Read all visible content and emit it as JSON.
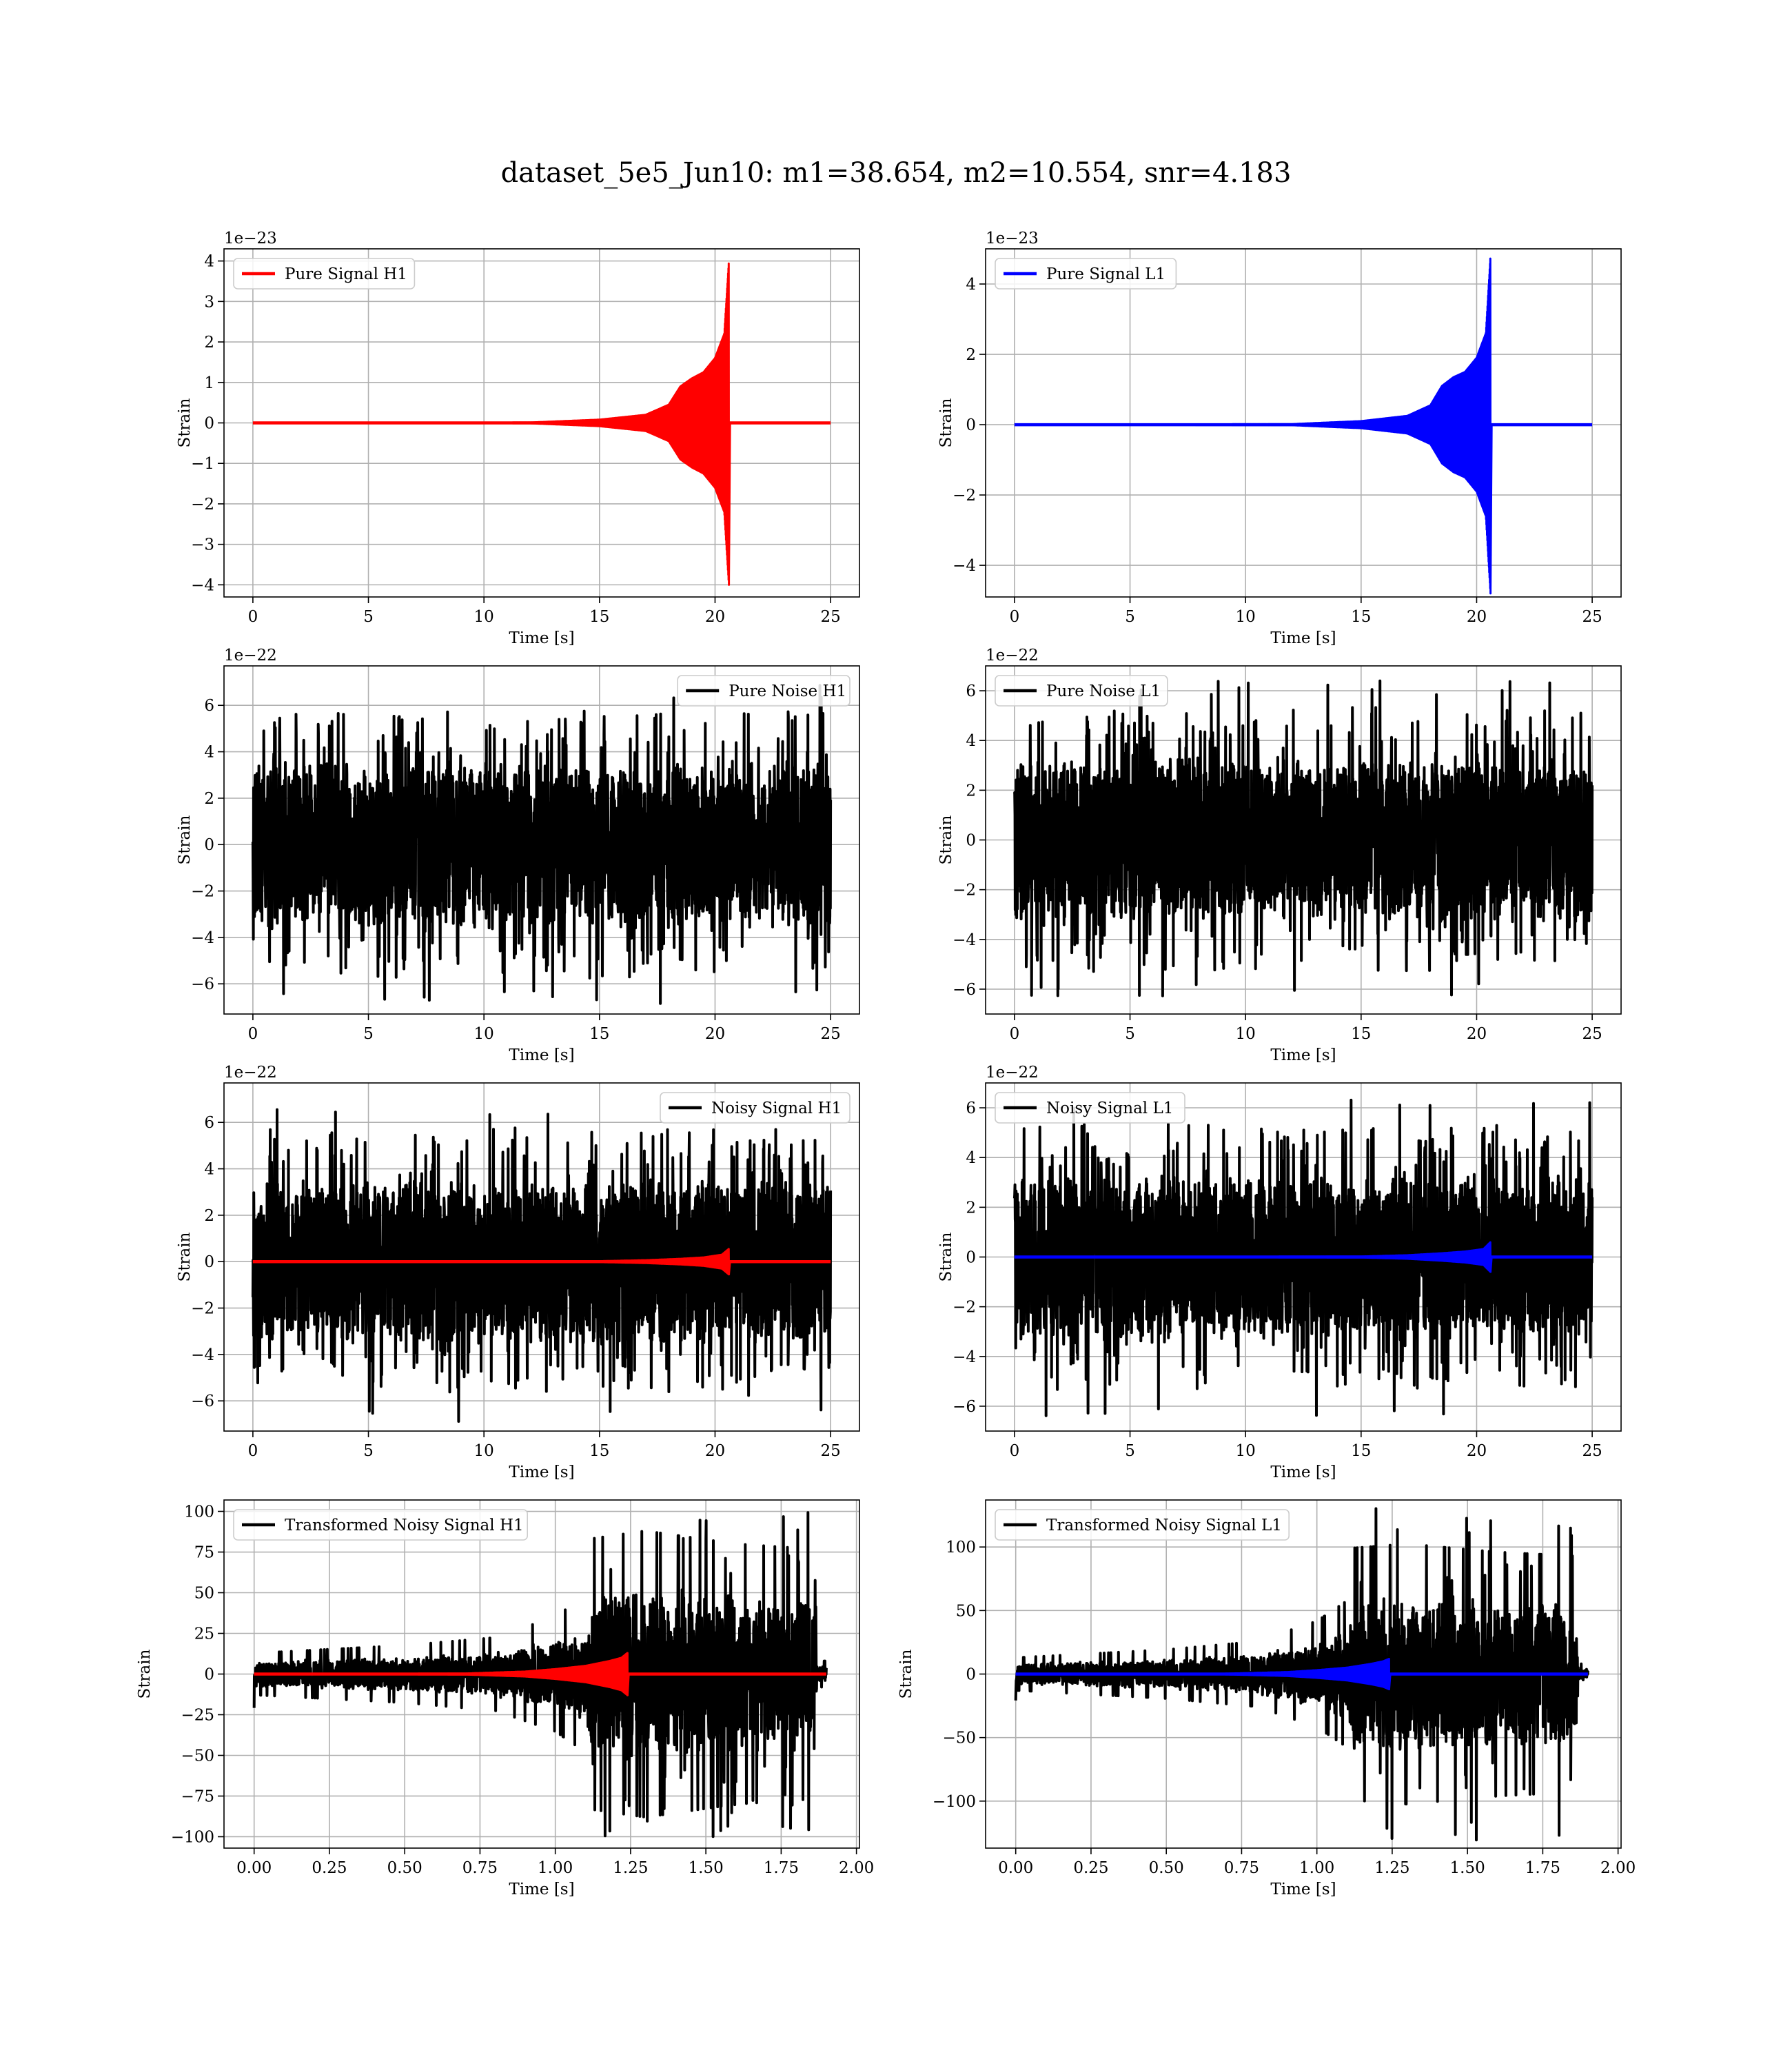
{
  "figure": {
    "suptitle": "dataset_5e5_Jun10: m1=38.654, m2=10.554, snr=4.183"
  },
  "chart_data": [
    {
      "id": "pure-signal-h1",
      "type": "line",
      "xlabel": "Time [s]",
      "ylabel": "Strain",
      "offset_text": "1e−23",
      "xlim": [
        -1.25,
        26.25
      ],
      "ylim": [
        -4.3,
        4.3
      ],
      "xticks": [
        0,
        5,
        10,
        15,
        20,
        25
      ],
      "yticks": [
        -4,
        -3,
        -2,
        -1,
        0,
        1,
        2,
        3,
        4
      ],
      "grid": true,
      "legend_loc": "upper left",
      "series": [
        {
          "name": "Pure Signal H1",
          "color": "#ff0000",
          "kind": "chirp",
          "x_range": [
            0,
            25
          ],
          "merger_time": 20.6,
          "amplitude_envelope": [
            [
              0,
              0.0
            ],
            [
              12,
              0.01
            ],
            [
              15,
              0.08
            ],
            [
              17,
              0.2
            ],
            [
              18,
              0.45
            ],
            [
              18.5,
              0.9
            ],
            [
              19,
              1.1
            ],
            [
              19.5,
              1.25
            ],
            [
              20,
              1.6
            ],
            [
              20.4,
              2.2
            ],
            [
              20.6,
              4.0
            ]
          ]
        }
      ]
    },
    {
      "id": "pure-signal-l1",
      "type": "line",
      "xlabel": "Time [s]",
      "ylabel": "Strain",
      "offset_text": "1e−23",
      "xlim": [
        -1.25,
        26.25
      ],
      "ylim": [
        -4.9,
        5.0
      ],
      "xticks": [
        0,
        5,
        10,
        15,
        20,
        25
      ],
      "yticks": [
        -4,
        -2,
        0,
        2,
        4
      ],
      "grid": true,
      "legend_loc": "upper left",
      "series": [
        {
          "name": "Pure Signal L1",
          "color": "#0000ff",
          "kind": "chirp",
          "x_range": [
            0,
            25
          ],
          "merger_time": 20.6,
          "amplitude_envelope": [
            [
              0,
              0.0
            ],
            [
              12,
              0.015
            ],
            [
              15,
              0.1
            ],
            [
              17,
              0.25
            ],
            [
              18,
              0.55
            ],
            [
              18.5,
              1.1
            ],
            [
              19,
              1.35
            ],
            [
              19.5,
              1.5
            ],
            [
              20,
              1.9
            ],
            [
              20.4,
              2.6
            ],
            [
              20.6,
              4.8
            ]
          ]
        }
      ]
    },
    {
      "id": "pure-noise-h1",
      "type": "line",
      "xlabel": "Time [s]",
      "ylabel": "Strain",
      "offset_text": "1e−22",
      "xlim": [
        -1.25,
        26.25
      ],
      "ylim": [
        -7.3,
        7.7
      ],
      "xticks": [
        0,
        5,
        10,
        15,
        20,
        25
      ],
      "yticks": [
        -6,
        -4,
        -2,
        0,
        2,
        4,
        6
      ],
      "grid": true,
      "legend_loc": "upper right",
      "series": [
        {
          "name": "Pure Noise H1",
          "color": "#000000",
          "kind": "noise",
          "x_range": [
            0,
            25
          ],
          "band": 3.7,
          "peak": 6.9
        }
      ]
    },
    {
      "id": "pure-noise-l1",
      "type": "line",
      "xlabel": "Time [s]",
      "ylabel": "Strain",
      "offset_text": "1e−22",
      "xlim": [
        -1.25,
        26.25
      ],
      "ylim": [
        -7.0,
        7.0
      ],
      "xticks": [
        0,
        5,
        10,
        15,
        20,
        25
      ],
      "yticks": [
        -6,
        -4,
        -2,
        0,
        2,
        4,
        6
      ],
      "grid": true,
      "legend_loc": "upper left",
      "series": [
        {
          "name": "Pure Noise L1",
          "color": "#000000",
          "kind": "noise",
          "x_range": [
            0,
            25
          ],
          "band": 3.4,
          "peak": 6.4
        }
      ]
    },
    {
      "id": "noisy-signal-h1",
      "type": "line",
      "xlabel": "Time [s]",
      "ylabel": "Strain",
      "offset_text": "1e−22",
      "xlim": [
        -1.25,
        26.25
      ],
      "ylim": [
        -7.3,
        7.7
      ],
      "xticks": [
        0,
        5,
        10,
        15,
        20,
        25
      ],
      "yticks": [
        -6,
        -4,
        -2,
        0,
        2,
        4,
        6
      ],
      "grid": true,
      "legend_loc": "upper right",
      "series": [
        {
          "name": "Noisy Signal H1",
          "color": "#000000",
          "kind": "noise",
          "x_range": [
            0,
            25
          ],
          "band": 3.7,
          "peak": 6.9
        },
        {
          "color": "#ff0000",
          "kind": "chirp",
          "x_range": [
            0,
            25
          ],
          "merger_time": 20.6,
          "amplitude_envelope": [
            [
              0,
              0.0
            ],
            [
              15,
              0.02
            ],
            [
              17,
              0.06
            ],
            [
              18.5,
              0.12
            ],
            [
              19.5,
              0.18
            ],
            [
              20.3,
              0.3
            ],
            [
              20.6,
              0.55
            ]
          ]
        }
      ]
    },
    {
      "id": "noisy-signal-l1",
      "type": "line",
      "xlabel": "Time [s]",
      "ylabel": "Strain",
      "offset_text": "1e−22",
      "xlim": [
        -1.25,
        26.25
      ],
      "ylim": [
        -7.0,
        7.0
      ],
      "xticks": [
        0,
        5,
        10,
        15,
        20,
        25
      ],
      "yticks": [
        -6,
        -4,
        -2,
        0,
        2,
        4,
        6
      ],
      "grid": true,
      "legend_loc": "upper left",
      "series": [
        {
          "name": "Noisy Signal L1",
          "color": "#000000",
          "kind": "noise",
          "x_range": [
            0,
            25
          ],
          "band": 3.4,
          "peak": 6.4
        },
        {
          "color": "#0000ff",
          "kind": "chirp",
          "x_range": [
            0,
            25
          ],
          "merger_time": 20.6,
          "amplitude_envelope": [
            [
              0,
              0.0
            ],
            [
              15,
              0.02
            ],
            [
              17,
              0.07
            ],
            [
              18.5,
              0.15
            ],
            [
              19.5,
              0.22
            ],
            [
              20.3,
              0.32
            ],
            [
              20.6,
              0.6
            ]
          ]
        }
      ]
    },
    {
      "id": "transformed-noisy-signal-h1",
      "type": "line",
      "xlabel": "Time [s]",
      "ylabel": "Strain",
      "offset_text": "",
      "xlim": [
        -0.1,
        2.01
      ],
      "ylim": [
        -107,
        107
      ],
      "xticks": [
        0.0,
        0.25,
        0.5,
        0.75,
        1.0,
        1.25,
        1.5,
        1.75,
        2.0
      ],
      "xtick_labels": [
        "0.00",
        "0.25",
        "0.50",
        "0.75",
        "1.00",
        "1.25",
        "1.50",
        "1.75",
        "2.00"
      ],
      "yticks": [
        -100,
        -75,
        -50,
        -25,
        0,
        25,
        50,
        75,
        100
      ],
      "grid": true,
      "legend_loc": "upper left",
      "series": [
        {
          "name": "Transformed Noisy Signal H1",
          "color": "#000000",
          "kind": "whitened",
          "x_range": [
            0,
            1.9
          ],
          "envelope": [
            [
              0,
              8
            ],
            [
              0.5,
              11
            ],
            [
              0.8,
              14
            ],
            [
              1.0,
              22
            ],
            [
              1.1,
              30
            ],
            [
              1.12,
              52
            ],
            [
              1.3,
              55
            ],
            [
              1.6,
              50
            ],
            [
              1.86,
              48
            ],
            [
              1.87,
              5
            ],
            [
              1.9,
              5
            ]
          ],
          "peak": 101
        },
        {
          "color": "#ff0000",
          "kind": "chirp",
          "x_range": [
            0,
            1.9
          ],
          "merger_time": 1.24,
          "amplitude_envelope": [
            [
              0,
              0.0
            ],
            [
              0.7,
              0.3
            ],
            [
              0.9,
              1.5
            ],
            [
              1.0,
              3.0
            ],
            [
              1.1,
              5.0
            ],
            [
              1.18,
              8.0
            ],
            [
              1.22,
              10.0
            ],
            [
              1.24,
              13.0
            ]
          ]
        }
      ]
    },
    {
      "id": "transformed-noisy-signal-l1",
      "type": "line",
      "xlabel": "Time [s]",
      "ylabel": "Strain",
      "offset_text": "",
      "xlim": [
        -0.1,
        2.01
      ],
      "ylim": [
        -137,
        137
      ],
      "xticks": [
        0.0,
        0.25,
        0.5,
        0.75,
        1.0,
        1.25,
        1.5,
        1.75,
        2.0
      ],
      "xtick_labels": [
        "0.00",
        "0.25",
        "0.50",
        "0.75",
        "1.00",
        "1.25",
        "1.50",
        "1.75",
        "2.00"
      ],
      "yticks": [
        -100,
        -50,
        0,
        50,
        100
      ],
      "grid": true,
      "legend_loc": "upper left",
      "series": [
        {
          "name": "Transformed Noisy Signal L1",
          "color": "#000000",
          "kind": "whitened",
          "x_range": [
            0,
            1.9
          ],
          "envelope": [
            [
              0,
              8
            ],
            [
              0.5,
              12
            ],
            [
              0.8,
              16
            ],
            [
              1.0,
              26
            ],
            [
              1.1,
              36
            ],
            [
              1.12,
              62
            ],
            [
              1.3,
              64
            ],
            [
              1.6,
              60
            ],
            [
              1.86,
              58
            ],
            [
              1.87,
              5
            ],
            [
              1.9,
              5
            ]
          ],
          "peak": 132
        },
        {
          "color": "#0000ff",
          "kind": "chirp",
          "x_range": [
            0,
            1.9
          ],
          "merger_time": 1.24,
          "amplitude_envelope": [
            [
              0,
              0.0
            ],
            [
              0.7,
              0.3
            ],
            [
              0.9,
              1.5
            ],
            [
              1.0,
              3.0
            ],
            [
              1.1,
              5.0
            ],
            [
              1.18,
              8.0
            ],
            [
              1.22,
              10.0
            ],
            [
              1.24,
              12.0
            ]
          ]
        }
      ]
    }
  ]
}
